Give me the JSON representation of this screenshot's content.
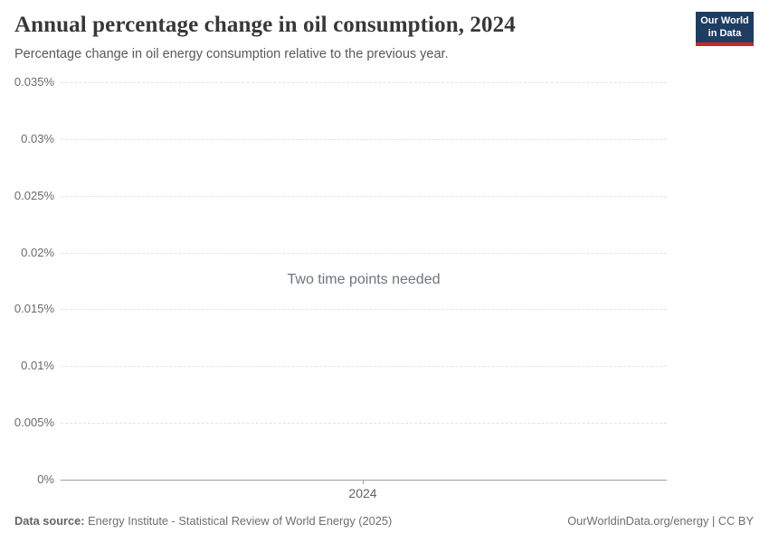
{
  "header": {
    "title": "Annual percentage change in oil consumption, 2024",
    "subtitle": "Percentage change in oil energy consumption relative to the previous year.",
    "logo": {
      "line1": "Our World",
      "line2": "in Data",
      "bg_color": "#1d3d63",
      "bar_color": "#cb2626"
    }
  },
  "chart_data": {
    "type": "line",
    "title": "Annual percentage change in oil consumption, 2024",
    "subtitle": "Percentage change in oil energy consumption relative to the previous year.",
    "series": [],
    "message": "Two time points needed",
    "x_ticks": [
      "2024"
    ],
    "y_ticks": [
      "0%",
      "0.005%",
      "0.01%",
      "0.015%",
      "0.02%",
      "0.025%",
      "0.03%",
      "0.035%"
    ],
    "ylim": [
      0,
      0.035
    ],
    "ylabel": "",
    "xlabel": "",
    "grid": "horizontal dashed",
    "legend": "none"
  },
  "colors": {
    "title": "#383838",
    "subtitle": "#56595c",
    "tick_label": "#6b6b6b",
    "gridline": "#e2e2e2",
    "axis_line": "#a3a3a3",
    "message": "#6e747b",
    "footer": "#6e6e6e"
  },
  "footer": {
    "datasource_label": "Data source:",
    "datasource_value": " Energy Institute - Statistical Review of World Energy (2025)",
    "license": "OurWorldinData.org/energy | CC BY"
  }
}
